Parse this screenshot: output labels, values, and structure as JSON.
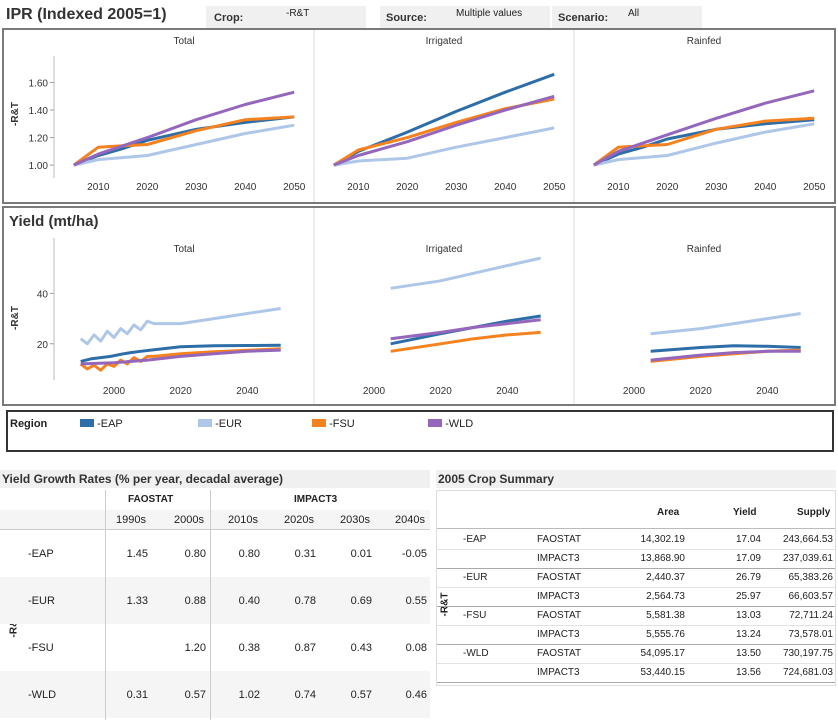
{
  "header": {
    "title": "IPR (Indexed 2005=1)",
    "crop_label": "Crop:",
    "crop_value": "-R&T",
    "source_label": "Source:",
    "source_value": "Multiple values",
    "scenario_label": "Scenario:",
    "scenario_value": "All"
  },
  "colors": {
    "EAP": "#2d6ea8",
    "EUR": "#aec7e8",
    "FSU": "#f5821f",
    "WLD": "#9467bd",
    "panel_border": "#7a7a7a"
  },
  "ipr": {
    "ylabel": "-R&T",
    "subtitles": [
      "Total",
      "Irrigated",
      "Rainfed"
    ],
    "y_ticks": [
      "1.60",
      "1.40",
      "1.20",
      "1.00"
    ],
    "x_ticks": [
      "2010",
      "2020",
      "2030",
      "2040",
      "2050"
    ]
  },
  "yield": {
    "title": "Yield (mt/ha)",
    "ylabel": "-R&T",
    "subtitles": [
      "Total",
      "Irrigated",
      "Rainfed"
    ],
    "y_ticks": [
      "40",
      "20"
    ],
    "x_ticks": [
      "2000",
      "2020",
      "2040"
    ]
  },
  "legend": {
    "title": "Region",
    "items": [
      {
        "label": "-EAP",
        "key": "EAP"
      },
      {
        "label": "-EUR",
        "key": "EUR"
      },
      {
        "label": "-FSU",
        "key": "FSU"
      },
      {
        "label": "-WLD",
        "key": "WLD"
      }
    ]
  },
  "chart_data": [
    {
      "type": "line",
      "title": "Total",
      "ylabel": "-R&T",
      "ylim": [
        0.95,
        1.72
      ],
      "xlim": [
        2003,
        2052
      ],
      "series": [
        {
          "name": "-EAP",
          "x": [
            2005,
            2010,
            2015,
            2020,
            2030,
            2040,
            2050
          ],
          "values": [
            1.0,
            1.07,
            1.12,
            1.18,
            1.26,
            1.31,
            1.35
          ]
        },
        {
          "name": "-EUR",
          "x": [
            2005,
            2010,
            2020,
            2030,
            2040,
            2050
          ],
          "values": [
            1.0,
            1.04,
            1.07,
            1.15,
            1.23,
            1.29
          ]
        },
        {
          "name": "-FSU",
          "x": [
            2005,
            2010,
            2015,
            2020,
            2030,
            2040,
            2050
          ],
          "values": [
            1.0,
            1.13,
            1.14,
            1.15,
            1.25,
            1.33,
            1.35
          ]
        },
        {
          "name": "-WLD",
          "x": [
            2005,
            2010,
            2020,
            2030,
            2040,
            2050
          ],
          "values": [
            1.0,
            1.08,
            1.2,
            1.33,
            1.44,
            1.53
          ]
        }
      ]
    },
    {
      "type": "line",
      "title": "Irrigated",
      "ylabel": "",
      "ylim": [
        0.95,
        1.72
      ],
      "xlim": [
        2003,
        2052
      ],
      "series": [
        {
          "name": "-EAP",
          "x": [
            2005,
            2010,
            2020,
            2030,
            2040,
            2050
          ],
          "values": [
            1.0,
            1.1,
            1.24,
            1.39,
            1.53,
            1.66
          ]
        },
        {
          "name": "-EUR",
          "x": [
            2005,
            2010,
            2020,
            2030,
            2040,
            2050
          ],
          "values": [
            1.0,
            1.03,
            1.05,
            1.13,
            1.2,
            1.27
          ]
        },
        {
          "name": "-FSU",
          "x": [
            2005,
            2010,
            2020,
            2030,
            2040,
            2050
          ],
          "values": [
            1.0,
            1.11,
            1.2,
            1.31,
            1.41,
            1.48
          ]
        },
        {
          "name": "-WLD",
          "x": [
            2005,
            2010,
            2020,
            2030,
            2040,
            2050
          ],
          "values": [
            1.0,
            1.07,
            1.17,
            1.29,
            1.4,
            1.5
          ]
        }
      ]
    },
    {
      "type": "line",
      "title": "Rainfed",
      "ylabel": "",
      "ylim": [
        0.95,
        1.72
      ],
      "xlim": [
        2003,
        2052
      ],
      "series": [
        {
          "name": "-EAP",
          "x": [
            2005,
            2010,
            2015,
            2020,
            2030,
            2040,
            2050
          ],
          "values": [
            1.0,
            1.08,
            1.13,
            1.19,
            1.26,
            1.3,
            1.33
          ]
        },
        {
          "name": "-EUR",
          "x": [
            2005,
            2010,
            2020,
            2030,
            2040,
            2050
          ],
          "values": [
            1.0,
            1.04,
            1.07,
            1.16,
            1.24,
            1.3
          ]
        },
        {
          "name": "-FSU",
          "x": [
            2005,
            2010,
            2015,
            2020,
            2030,
            2040,
            2050
          ],
          "values": [
            1.0,
            1.13,
            1.14,
            1.15,
            1.26,
            1.32,
            1.34
          ]
        },
        {
          "name": "-WLD",
          "x": [
            2005,
            2010,
            2020,
            2030,
            2040,
            2050
          ],
          "values": [
            1.0,
            1.1,
            1.22,
            1.34,
            1.45,
            1.54
          ]
        }
      ]
    },
    {
      "type": "line",
      "title": "Total",
      "ylabel": "-R&T",
      "ylim": [
        8,
        58
      ],
      "xlim": [
        1985,
        2057
      ],
      "series": [
        {
          "name": "-EAP",
          "x": [
            1990,
            1993,
            1996,
            1999,
            2002,
            2005,
            2008,
            2012,
            2020,
            2030,
            2040,
            2050
          ],
          "values": [
            13.0,
            14.0,
            14.5,
            15.0,
            15.8,
            16.5,
            17.0,
            17.6,
            18.8,
            19.2,
            19.3,
            19.4
          ]
        },
        {
          "name": "-EUR",
          "x": [
            1990,
            1992,
            1994,
            1996,
            1998,
            2000,
            2002,
            2004,
            2006,
            2008,
            2010,
            2012,
            2020,
            2030,
            2040,
            2050
          ],
          "values": [
            22.0,
            20.0,
            23.5,
            21.0,
            25.0,
            22.5,
            26.0,
            24.0,
            27.5,
            25.5,
            29.0,
            28.0,
            28.0,
            30.0,
            32.0,
            34.0
          ]
        },
        {
          "name": "-FSU",
          "x": [
            1990,
            1992,
            1994,
            1996,
            1998,
            2000,
            2002,
            2004,
            2006,
            2008,
            2010,
            2012,
            2020,
            2030,
            2040,
            2050
          ],
          "values": [
            12.0,
            10.0,
            11.5,
            9.5,
            12.0,
            11.0,
            13.5,
            12.0,
            14.5,
            13.0,
            15.0,
            15.0,
            16.0,
            16.8,
            17.4,
            18.0
          ]
        },
        {
          "name": "-WLD",
          "x": [
            1990,
            2000,
            2010,
            2020,
            2030,
            2040,
            2050
          ],
          "values": [
            12.0,
            12.5,
            13.5,
            15.0,
            16.0,
            17.0,
            17.5
          ]
        }
      ]
    },
    {
      "type": "line",
      "title": "Irrigated",
      "ylabel": "",
      "ylim": [
        8,
        58
      ],
      "xlim": [
        1985,
        2057
      ],
      "series": [
        {
          "name": "-EAP",
          "x": [
            2005,
            2020,
            2030,
            2040,
            2050
          ],
          "values": [
            20.0,
            24.0,
            26.5,
            29.0,
            31.0
          ]
        },
        {
          "name": "-EUR",
          "x": [
            2005,
            2020,
            2030,
            2040,
            2050
          ],
          "values": [
            42.0,
            45.0,
            48.0,
            51.0,
            54.0
          ]
        },
        {
          "name": "-FSU",
          "x": [
            2005,
            2020,
            2030,
            2040,
            2050
          ],
          "values": [
            17.0,
            20.0,
            22.0,
            23.5,
            24.5
          ]
        },
        {
          "name": "-WLD",
          "x": [
            2005,
            2020,
            2030,
            2040,
            2050
          ],
          "values": [
            22.0,
            24.5,
            26.5,
            28.0,
            29.5
          ]
        }
      ]
    },
    {
      "type": "line",
      "title": "Rainfed",
      "ylabel": "",
      "ylim": [
        8,
        58
      ],
      "xlim": [
        1985,
        2057
      ],
      "series": [
        {
          "name": "-EAP",
          "x": [
            2005,
            2020,
            2030,
            2040,
            2050
          ],
          "values": [
            17.0,
            18.5,
            19.2,
            19.0,
            18.5
          ]
        },
        {
          "name": "-EUR",
          "x": [
            2005,
            2020,
            2030,
            2040,
            2050
          ],
          "values": [
            24.0,
            26.0,
            28.0,
            30.0,
            32.0
          ]
        },
        {
          "name": "-FSU",
          "x": [
            2005,
            2020,
            2030,
            2040,
            2050
          ],
          "values": [
            13.0,
            15.0,
            16.0,
            17.0,
            17.5
          ]
        },
        {
          "name": "-WLD",
          "x": [
            2005,
            2020,
            2030,
            2040,
            2050
          ],
          "values": [
            13.5,
            15.5,
            16.5,
            17.0,
            17.0
          ]
        }
      ]
    }
  ],
  "growth": {
    "title": "Yield Growth Rates (% per year, decadal average)",
    "group1": "FAOSTAT",
    "group2": "IMPACT3",
    "crop": "-R&T",
    "columns": [
      "1990s",
      "2000s",
      "2010s",
      "2020s",
      "2030s",
      "2040s"
    ],
    "rows": [
      {
        "region": "-EAP",
        "values": [
          "1.45",
          "0.80",
          "0.80",
          "0.31",
          "0.01",
          "-0.05"
        ]
      },
      {
        "region": "-EUR",
        "values": [
          "1.33",
          "0.88",
          "0.40",
          "0.78",
          "0.69",
          "0.55"
        ]
      },
      {
        "region": "-FSU",
        "values": [
          "",
          "1.20",
          "0.38",
          "0.87",
          "0.43",
          "0.08"
        ]
      },
      {
        "region": "-WLD",
        "values": [
          "0.31",
          "0.57",
          "1.02",
          "0.74",
          "0.57",
          "0.46"
        ]
      }
    ]
  },
  "summary": {
    "title": "2005 Crop Summary",
    "crop": "-R&T",
    "columns": [
      "Area",
      "Yield",
      "Supply"
    ],
    "groups": [
      {
        "region": "-EAP",
        "rows": [
          {
            "source": "FAOSTAT",
            "area": "14,302.19",
            "yield": "17.04",
            "supply": "243,664.53"
          },
          {
            "source": "IMPACT3",
            "area": "13,868.90",
            "yield": "17.09",
            "supply": "237,039.61"
          }
        ]
      },
      {
        "region": "-EUR",
        "rows": [
          {
            "source": "FAOSTAT",
            "area": "2,440.37",
            "yield": "26.79",
            "supply": "65,383.26"
          },
          {
            "source": "IMPACT3",
            "area": "2,564.73",
            "yield": "25.97",
            "supply": "66,603.57"
          }
        ]
      },
      {
        "region": "-FSU",
        "rows": [
          {
            "source": "FAOSTAT",
            "area": "5,581.38",
            "yield": "13.03",
            "supply": "72,711.24"
          },
          {
            "source": "IMPACT3",
            "area": "5,555.76",
            "yield": "13.24",
            "supply": "73,578.01"
          }
        ]
      },
      {
        "region": "-WLD",
        "rows": [
          {
            "source": "FAOSTAT",
            "area": "54,095.17",
            "yield": "13.50",
            "supply": "730,197.75"
          },
          {
            "source": "IMPACT3",
            "area": "53,440.15",
            "yield": "13.56",
            "supply": "724,681.03"
          }
        ]
      }
    ]
  }
}
